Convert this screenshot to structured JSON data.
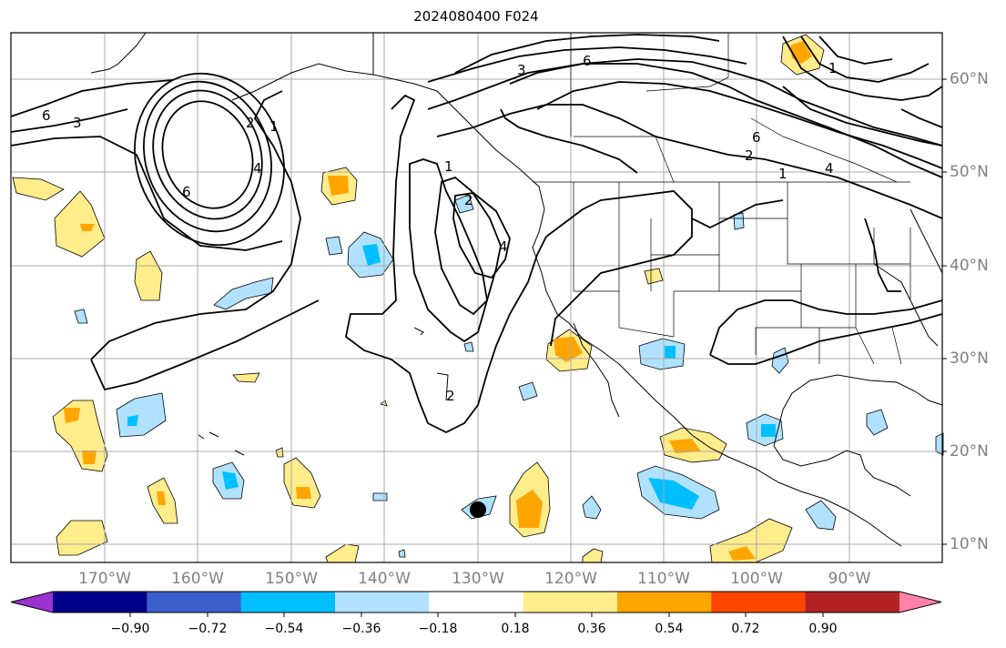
{
  "title": "2024080400 F024",
  "map": {
    "projection": "plate-carree",
    "lon_range": [
      -180,
      -84
    ],
    "lat_range": [
      8,
      65
    ],
    "grid": true,
    "lon_labels": [
      "170°W",
      "160°W",
      "150°W",
      "140°W",
      "130°W",
      "120°W",
      "110°W",
      "100°W",
      "90°W"
    ],
    "lat_labels": [
      "60°N",
      "50°N",
      "40°N",
      "30°N",
      "20°N",
      "10°N"
    ],
    "contour_labels": [
      "6",
      "3",
      "1",
      "2",
      "4",
      "6",
      "1",
      "2",
      "3",
      "4",
      "6",
      "1",
      "2",
      "4",
      "6",
      "1",
      "2"
    ],
    "marker": {
      "lon": -130,
      "lat": 14,
      "symbol": "filled-circle"
    }
  },
  "colorbar": {
    "extend": "both",
    "ticks": [
      "−0.90",
      "−0.72",
      "−0.54",
      "−0.36",
      "−0.18",
      "0.18",
      "0.36",
      "0.54",
      "0.72",
      "0.90"
    ],
    "colors": [
      "#9a32cd",
      "#00008b",
      "#3a5fcd",
      "#00bfff",
      "#b0e2ff",
      "#ffffff",
      "#ffec8b",
      "#ffa500",
      "#ff4500",
      "#b22222",
      "#ff82ab"
    ]
  }
}
